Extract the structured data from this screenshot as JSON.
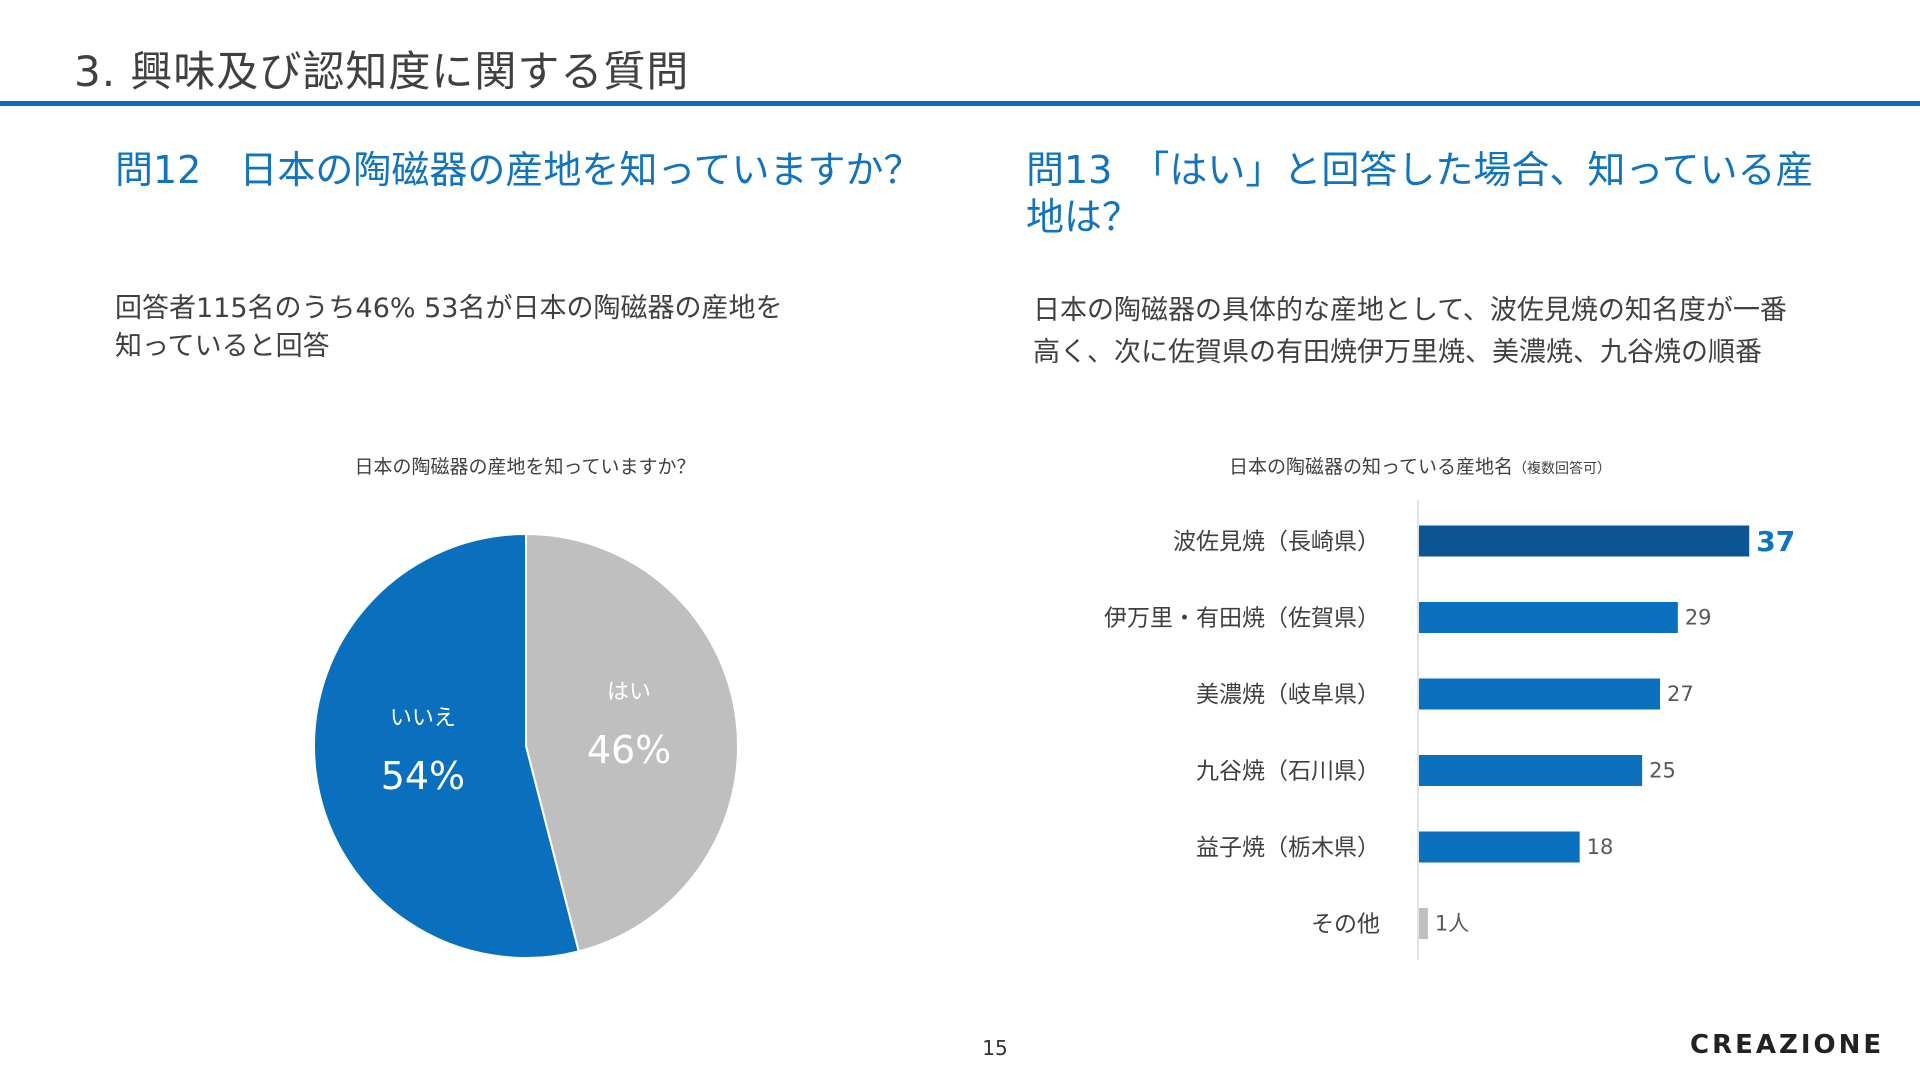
{
  "slide": {
    "title": "3. 興味及び認知度に関する質問",
    "page_number": "15",
    "brand": "CREAZIONE"
  },
  "left": {
    "question": "問12　日本の陶磁器の産地を知っていますか？",
    "summary_line1": "回答者115名のうち46% 53名が日本の陶磁器の産地を",
    "summary_line2": "知っていると回答"
  },
  "right": {
    "question_line1": "問13　「はい」と回答した場合、知っている産",
    "question_line2": "地は？",
    "summary_line1": "日本の陶磁器の具体的な産地として、波佐見焼の知名度が一番",
    "summary_line2": "高く、次に佐賀県の有田焼伊万里焼、美濃焼、九谷焼の順番"
  },
  "colors": {
    "blue": "#0a6fbd",
    "dark_blue": "#0b5592",
    "gray": "#bfbfbf",
    "accent_text": "#1273bf"
  },
  "chart_data": [
    {
      "type": "pie",
      "title": "日本の陶磁器の産地を知っていますか？",
      "slices": [
        {
          "label": "はい",
          "value": 46,
          "display": "46%",
          "color": "#bfbfbf"
        },
        {
          "label": "いいえ",
          "value": 54,
          "display": "54%",
          "color": "#0a6fbd"
        }
      ]
    },
    {
      "type": "bar",
      "orientation": "horizontal",
      "title": "日本の陶磁器の知っている産地名",
      "title_note": "（複数回答可）",
      "categories": [
        "波佐見焼（長崎県）",
        "伊万里・有田焼（佐賀県）",
        "美濃焼（岐阜県）",
        "九谷焼（石川県）",
        "益子焼（栃木県）",
        "その他"
      ],
      "values": [
        37,
        29,
        27,
        25,
        18,
        1
      ],
      "value_labels": [
        "37",
        "29",
        "27",
        "25",
        "18",
        "1人"
      ],
      "bar_colors": [
        "#0b5592",
        "#0a6fbd",
        "#0a6fbd",
        "#0a6fbd",
        "#0a6fbd",
        "#bfbfbf"
      ],
      "xlim": [
        0,
        40
      ]
    }
  ]
}
